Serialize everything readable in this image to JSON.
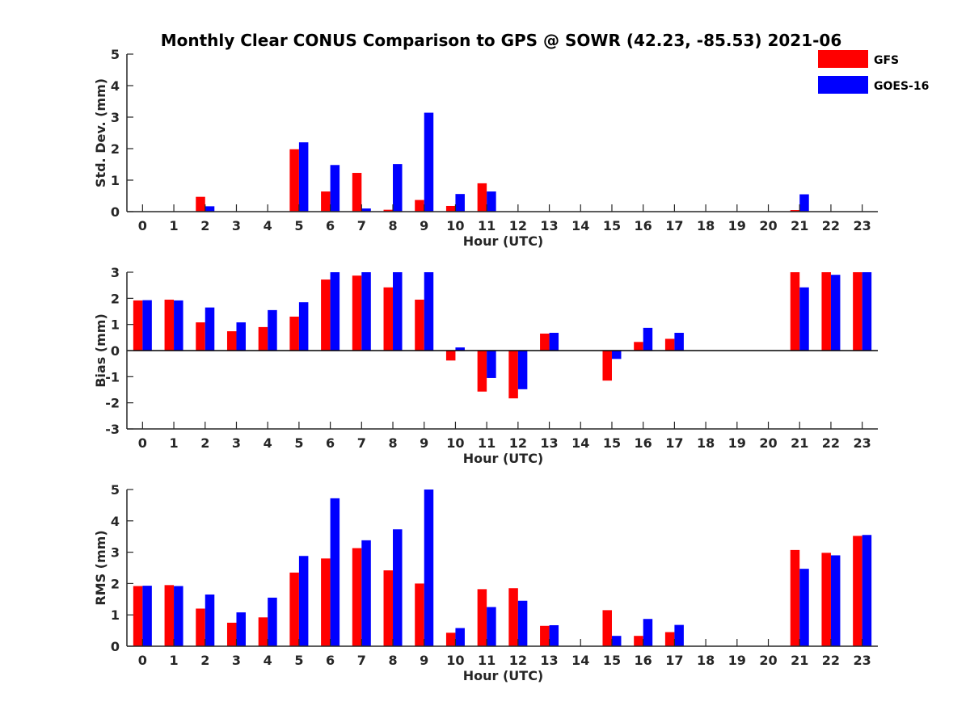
{
  "title": "Monthly Clear CONUS Comparison to GPS @ SOWR (42.23, -85.53) 2021-06",
  "legend": [
    {
      "name": "GFS",
      "color": "#ff0000"
    },
    {
      "name": "GOES-16",
      "color": "#0000ff"
    }
  ],
  "chart_data": [
    {
      "type": "bar",
      "xlabel": "Hour (UTC)",
      "ylabel": "Std. Dev. (mm)",
      "ylim": [
        0,
        5
      ],
      "yticks": [
        0,
        1,
        2,
        3,
        4,
        5
      ],
      "categories": [
        "0",
        "1",
        "2",
        "3",
        "4",
        "5",
        "6",
        "7",
        "8",
        "9",
        "10",
        "11",
        "12",
        "13",
        "14",
        "15",
        "16",
        "17",
        "18",
        "19",
        "20",
        "21",
        "22",
        "23"
      ],
      "series": [
        {
          "name": "GFS",
          "values": [
            0,
            0,
            0.47,
            0,
            0,
            1.98,
            0.64,
            1.23,
            0.06,
            0.37,
            0.18,
            0.9,
            0,
            0,
            0,
            0,
            0,
            0,
            0,
            0,
            0,
            0.05,
            0,
            0
          ]
        },
        {
          "name": "GOES-16",
          "values": [
            0,
            0,
            0.17,
            0,
            0,
            2.2,
            1.48,
            0.1,
            1.51,
            3.14,
            0.56,
            0.64,
            0,
            0,
            0,
            0,
            0,
            0,
            0,
            0,
            0,
            0.55,
            0,
            0
          ]
        }
      ]
    },
    {
      "type": "bar",
      "xlabel": "Hour (UTC)",
      "ylabel": "Bias (mm)",
      "ylim": [
        -3,
        3
      ],
      "yticks": [
        -3,
        -2,
        -1,
        0,
        1,
        2,
        3
      ],
      "categories": [
        "0",
        "1",
        "2",
        "3",
        "4",
        "5",
        "6",
        "7",
        "8",
        "9",
        "10",
        "11",
        "12",
        "13",
        "14",
        "15",
        "16",
        "17",
        "18",
        "19",
        "20",
        "21",
        "22",
        "23"
      ],
      "series": [
        {
          "name": "GFS",
          "values": [
            1.92,
            1.95,
            1.08,
            0.74,
            0.9,
            1.3,
            2.72,
            2.87,
            2.42,
            1.95,
            -0.38,
            -1.57,
            -1.83,
            0.65,
            0,
            -1.15,
            0.33,
            0.45,
            0,
            0,
            0,
            3.0,
            3.0,
            3.0
          ]
        },
        {
          "name": "GOES-16",
          "values": [
            1.93,
            1.92,
            1.65,
            1.08,
            1.55,
            1.85,
            3.0,
            3.0,
            3.0,
            3.0,
            0.12,
            -1.05,
            -1.48,
            0.68,
            0,
            -0.32,
            0.87,
            0.68,
            0,
            0,
            0,
            2.42,
            2.9,
            3.0
          ]
        }
      ]
    },
    {
      "type": "bar",
      "xlabel": "Hour (UTC)",
      "ylabel": "RMS (mm)",
      "ylim": [
        0,
        5
      ],
      "yticks": [
        0,
        1,
        2,
        3,
        4,
        5
      ],
      "categories": [
        "0",
        "1",
        "2",
        "3",
        "4",
        "5",
        "6",
        "7",
        "8",
        "9",
        "10",
        "11",
        "12",
        "13",
        "14",
        "15",
        "16",
        "17",
        "18",
        "19",
        "20",
        "21",
        "22",
        "23"
      ],
      "series": [
        {
          "name": "GFS",
          "values": [
            1.92,
            1.95,
            1.2,
            0.75,
            0.92,
            2.35,
            2.8,
            3.13,
            2.42,
            2.0,
            0.43,
            1.82,
            1.85,
            0.65,
            0,
            1.15,
            0.33,
            0.45,
            0,
            0,
            0,
            3.07,
            2.98,
            3.52
          ]
        },
        {
          "name": "GOES-16",
          "values": [
            1.93,
            1.92,
            1.65,
            1.08,
            1.55,
            2.88,
            4.72,
            3.38,
            3.73,
            5.0,
            0.58,
            1.25,
            1.45,
            0.67,
            0,
            0.33,
            0.87,
            0.68,
            0,
            0,
            0,
            2.47,
            2.9,
            3.55
          ]
        }
      ]
    }
  ]
}
